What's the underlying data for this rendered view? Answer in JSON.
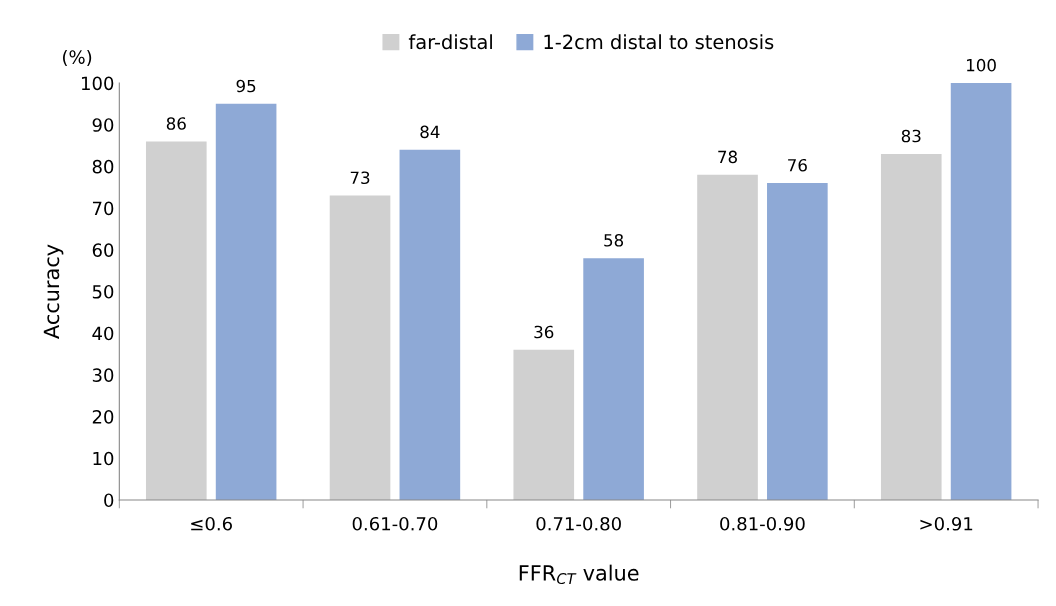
{
  "chart_data": {
    "type": "bar",
    "ylabel": "Accuracy",
    "xlabel": "FFR$_{CT}$ value",
    "annotations": [
      "(%)"
    ],
    "categories": [
      "≤0.6",
      "0.61-0.70",
      "0.71-0.80",
      "0.81-0.90",
      ">0.91"
    ],
    "series": [
      {
        "name": "far-distal",
        "color": "#d0d0d0",
        "values": [
          86,
          73,
          36,
          78,
          83
        ]
      },
      {
        "name": "1-2cm distal to stenosis",
        "color": "#8ea9d6",
        "values": [
          95,
          84,
          58,
          76,
          100
        ]
      }
    ],
    "ylim": [
      0,
      100
    ],
    "yticks": [
      0,
      10,
      20,
      30,
      40,
      50,
      60,
      70,
      80,
      90,
      100
    ],
    "data_labels": true,
    "legend": "top",
    "grid": false
  }
}
